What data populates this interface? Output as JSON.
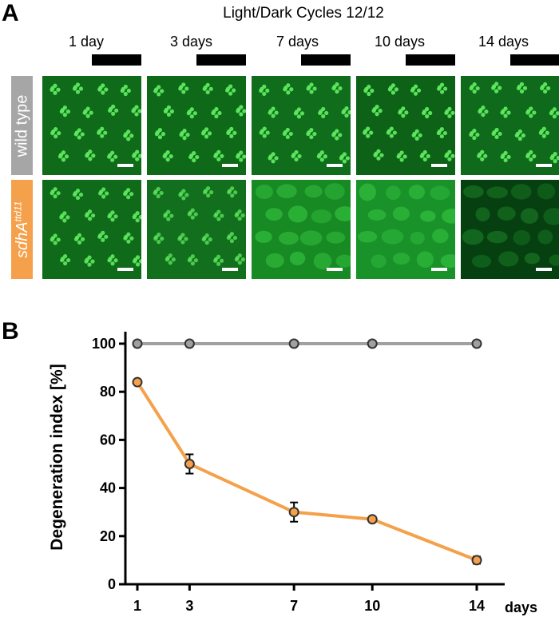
{
  "panel_a": {
    "letter": "A",
    "title": "Light/Dark Cycles 12/12",
    "timepoints": [
      "1 day",
      "3 days",
      "7 days",
      "10 days",
      "14 days"
    ],
    "rows": [
      {
        "label": "wild type",
        "color": "#a6a6a6"
      },
      {
        "label_main": "sdhA",
        "label_sup": "ttd11",
        "color": "#f5a04a"
      }
    ]
  },
  "panel_b": {
    "letter": "B"
  },
  "chart_data": {
    "type": "line",
    "x": [
      1,
      3,
      7,
      10,
      14
    ],
    "xlabel": "days",
    "ylabel": "Degeneration index [%]",
    "ylim": [
      0,
      100
    ],
    "yticks": [
      0,
      20,
      40,
      60,
      80,
      100
    ],
    "series": [
      {
        "values": [
          100,
          100,
          100,
          100,
          100
        ],
        "errors": [
          0,
          0,
          0,
          0,
          0
        ],
        "color": "#a0a0a0"
      },
      {
        "values": [
          84,
          50,
          30,
          27,
          10
        ],
        "errors": [
          0,
          4,
          4,
          0,
          1.5
        ],
        "color": "#f5a04a"
      }
    ]
  }
}
